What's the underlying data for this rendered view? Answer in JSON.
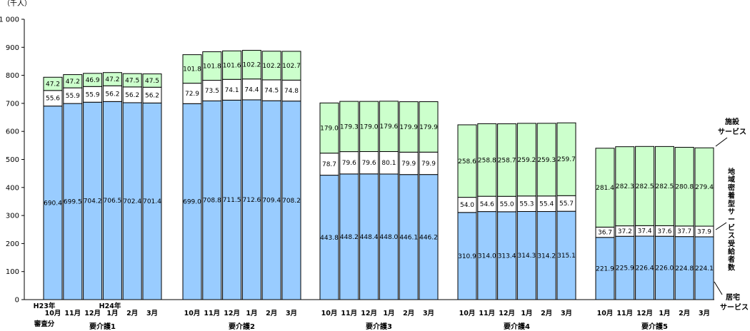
{
  "chart_data": {
    "type": "bar",
    "stacked": true,
    "unit_label": "（千人）",
    "ylim": [
      0,
      1000
    ],
    "yticks": [
      "0",
      "100",
      "200",
      "300",
      "400",
      "500",
      "600",
      "700",
      "800",
      "900",
      "1 000"
    ],
    "month_labels": [
      "10月",
      "11月",
      "12月",
      "1月",
      "2月",
      "3月"
    ],
    "year_markers": {
      "start": "H23年",
      "mid": "H24年",
      "note": "審査分"
    },
    "groups": [
      {
        "name": "要介護1",
        "series": {
          "home": [
            690.4,
            699.5,
            704.2,
            706.5,
            702.4,
            701.4
          ],
          "community": [
            55.6,
            55.9,
            55.9,
            56.2,
            56.2,
            56.2
          ],
          "facility": [
            47.2,
            47.2,
            46.9,
            47.2,
            47.5,
            47.5
          ]
        }
      },
      {
        "name": "要介護2",
        "series": {
          "home": [
            699.0,
            708.8,
            711.5,
            712.6,
            709.4,
            708.2
          ],
          "community": [
            72.9,
            73.5,
            74.1,
            74.4,
            74.5,
            74.8
          ],
          "facility": [
            101.8,
            101.8,
            101.6,
            102.2,
            102.2,
            102.7
          ]
        }
      },
      {
        "name": "要介護3",
        "series": {
          "home": [
            443.8,
            448.2,
            448.4,
            448.0,
            446.1,
            446.2
          ],
          "community": [
            78.7,
            79.6,
            79.6,
            80.1,
            79.9,
            79.9
          ],
          "facility": [
            179.0,
            179.3,
            179.0,
            179.6,
            179.9,
            179.9
          ]
        }
      },
      {
        "name": "要介護4",
        "series": {
          "home": [
            310.9,
            314.0,
            313.4,
            314.3,
            314.2,
            315.1
          ],
          "community": [
            54.0,
            54.6,
            55.0,
            55.3,
            55.4,
            55.7
          ],
          "facility": [
            258.6,
            258.8,
            258.7,
            259.2,
            259.3,
            259.7
          ]
        }
      },
      {
        "name": "要介護5",
        "series": {
          "home": [
            221.9,
            225.9,
            226.4,
            226.0,
            224.8,
            224.1
          ],
          "community": [
            36.7,
            37.2,
            37.4,
            37.6,
            37.7,
            37.9
          ],
          "facility": [
            281.4,
            282.3,
            282.5,
            282.5,
            280.8,
            279.4
          ]
        }
      }
    ],
    "series_labels": {
      "facility": "施設サービス",
      "community": "地域密着型サービス受給者数",
      "home": "居宅サービス"
    },
    "colors": {
      "home": "#99ccff",
      "community": "#ffffff",
      "facility": "#ccffcc",
      "stroke": "#000000"
    }
  }
}
